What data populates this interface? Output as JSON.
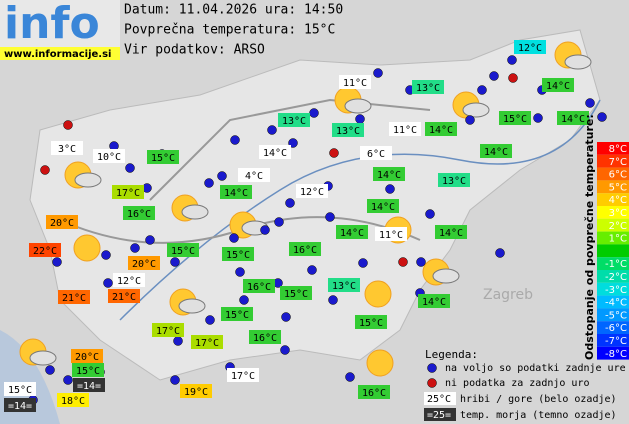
{
  "header": {
    "logo": "info",
    "site": "www.informacije.si",
    "date_line": "Datum: 11.04.2026 ura: 14:50",
    "avg_line": "Povprečna temperatura: 15°C",
    "source_line": "Vir podatkov: ARSO"
  },
  "map_labels": [
    "Zagreb"
  ],
  "stations": [
    {
      "label": "12°C",
      "bg": "#00e0e0"
    },
    {
      "label": "11°C",
      "bg": "#ffffff"
    },
    {
      "label": "13°C",
      "bg": "#22dd88"
    },
    {
      "label": "14°C",
      "bg": "#33cc33"
    },
    {
      "label": "13°C",
      "bg": "#22dd88"
    },
    {
      "label": "13°C",
      "bg": "#22dd88"
    },
    {
      "label": "11°C",
      "bg": "#ffffff"
    },
    {
      "label": "14°C",
      "bg": "#33cc33"
    },
    {
      "label": "15°C",
      "bg": "#33cc33"
    },
    {
      "label": "14°C",
      "bg": "#33cc33"
    },
    {
      "label": "3°C",
      "bg": "#ffffff"
    },
    {
      "label": "10°C",
      "bg": "#ffffff"
    },
    {
      "label": "15°C",
      "bg": "#33cc33"
    },
    {
      "label": "14°C",
      "bg": "#ffffff"
    },
    {
      "label": "6°C",
      "bg": "#ffffff"
    },
    {
      "label": "14°C",
      "bg": "#33cc33"
    },
    {
      "label": "14°C",
      "bg": "#33cc33"
    },
    {
      "label": "4°C",
      "bg": "#ffffff"
    },
    {
      "label": "13°C",
      "bg": "#22dd88"
    },
    {
      "label": "17°C",
      "bg": "#aadd00"
    },
    {
      "label": "14°C",
      "bg": "#33cc33"
    },
    {
      "label": "12°C",
      "bg": "#ffffff"
    },
    {
      "label": "16°C",
      "bg": "#33cc33"
    },
    {
      "label": "14°C",
      "bg": "#33cc33"
    },
    {
      "label": "20°C",
      "bg": "#ff9900"
    },
    {
      "label": "14°C",
      "bg": "#33cc33"
    },
    {
      "label": "11°C",
      "bg": "#ffffff"
    },
    {
      "label": "14°C",
      "bg": "#33cc33"
    },
    {
      "label": "15°C",
      "bg": "#33cc33"
    },
    {
      "label": "16°C",
      "bg": "#33cc33"
    },
    {
      "label": "22°C",
      "bg": "#ff4400"
    },
    {
      "label": "20°C",
      "bg": "#ff9900"
    },
    {
      "label": "15°C",
      "bg": "#33cc33"
    },
    {
      "label": "12°C",
      "bg": "#ffffff"
    },
    {
      "label": "13°C",
      "bg": "#22dd88"
    },
    {
      "label": "16°C",
      "bg": "#33cc33"
    },
    {
      "label": "15°C",
      "bg": "#33cc33"
    },
    {
      "label": "21°C",
      "bg": "#ff6600"
    },
    {
      "label": "21°C",
      "bg": "#ff6600"
    },
    {
      "label": "14°C",
      "bg": "#33cc33"
    },
    {
      "label": "15°C",
      "bg": "#33cc33"
    },
    {
      "label": "15°C",
      "bg": "#33cc33"
    },
    {
      "label": "17°C",
      "bg": "#aadd00"
    },
    {
      "label": "17°C",
      "bg": "#aadd00"
    },
    {
      "label": "16°C",
      "bg": "#33cc33"
    },
    {
      "label": "20°C",
      "bg": "#ff9900"
    },
    {
      "label": "15°C",
      "bg": "#33cc33"
    },
    {
      "label": "15°C",
      "bg": "#ffffff"
    },
    {
      "label": "=14=",
      "bg": "#333333"
    },
    {
      "label": "18°C",
      "bg": "#ffee00"
    },
    {
      "label": "19°C",
      "bg": "#ffcc00"
    },
    {
      "label": "17°C",
      "bg": "#ffffff"
    },
    {
      "label": "16°C",
      "bg": "#33cc33"
    },
    {
      "label": "=14=",
      "bg": "#333333"
    }
  ],
  "legend": {
    "title": "Legenda:",
    "blue_dot": "na voljo so podatki zadnje ure",
    "red_dot": "ni podatka za zadnjo uro",
    "mountain_sample": "25°C",
    "mountain_text": "hribi / gore (belo ozadje)",
    "sea_sample": "=25=",
    "sea_text": "temp. morja (temno ozadje)"
  },
  "scale": {
    "title": "Odstopanje od povprečne temperature:",
    "rows": [
      {
        "label": "8°C",
        "color": "#ff0000"
      },
      {
        "label": "7°C",
        "color": "#ff3300"
      },
      {
        "label": "6°C",
        "color": "#ff6600"
      },
      {
        "label": "5°C",
        "color": "#ff9900"
      },
      {
        "label": "4°C",
        "color": "#ffcc00"
      },
      {
        "label": "3°C",
        "color": "#ffff00"
      },
      {
        "label": "2°C",
        "color": "#ccff00"
      },
      {
        "label": "1°C",
        "color": "#66ee00"
      },
      {
        "label": null,
        "color": "#00cc00"
      },
      {
        "label": "-1°C",
        "color": "#00dd66"
      },
      {
        "label": "-2°C",
        "color": "#00ddaa"
      },
      {
        "label": "-3°C",
        "color": "#00dddd"
      },
      {
        "label": "-4°C",
        "color": "#00bbff"
      },
      {
        "label": "-5°C",
        "color": "#0099ff"
      },
      {
        "label": "-6°C",
        "color": "#0066ff"
      },
      {
        "label": "-7°C",
        "color": "#0033ff"
      },
      {
        "label": "-8°C",
        "color": "#0000ff"
      }
    ]
  }
}
